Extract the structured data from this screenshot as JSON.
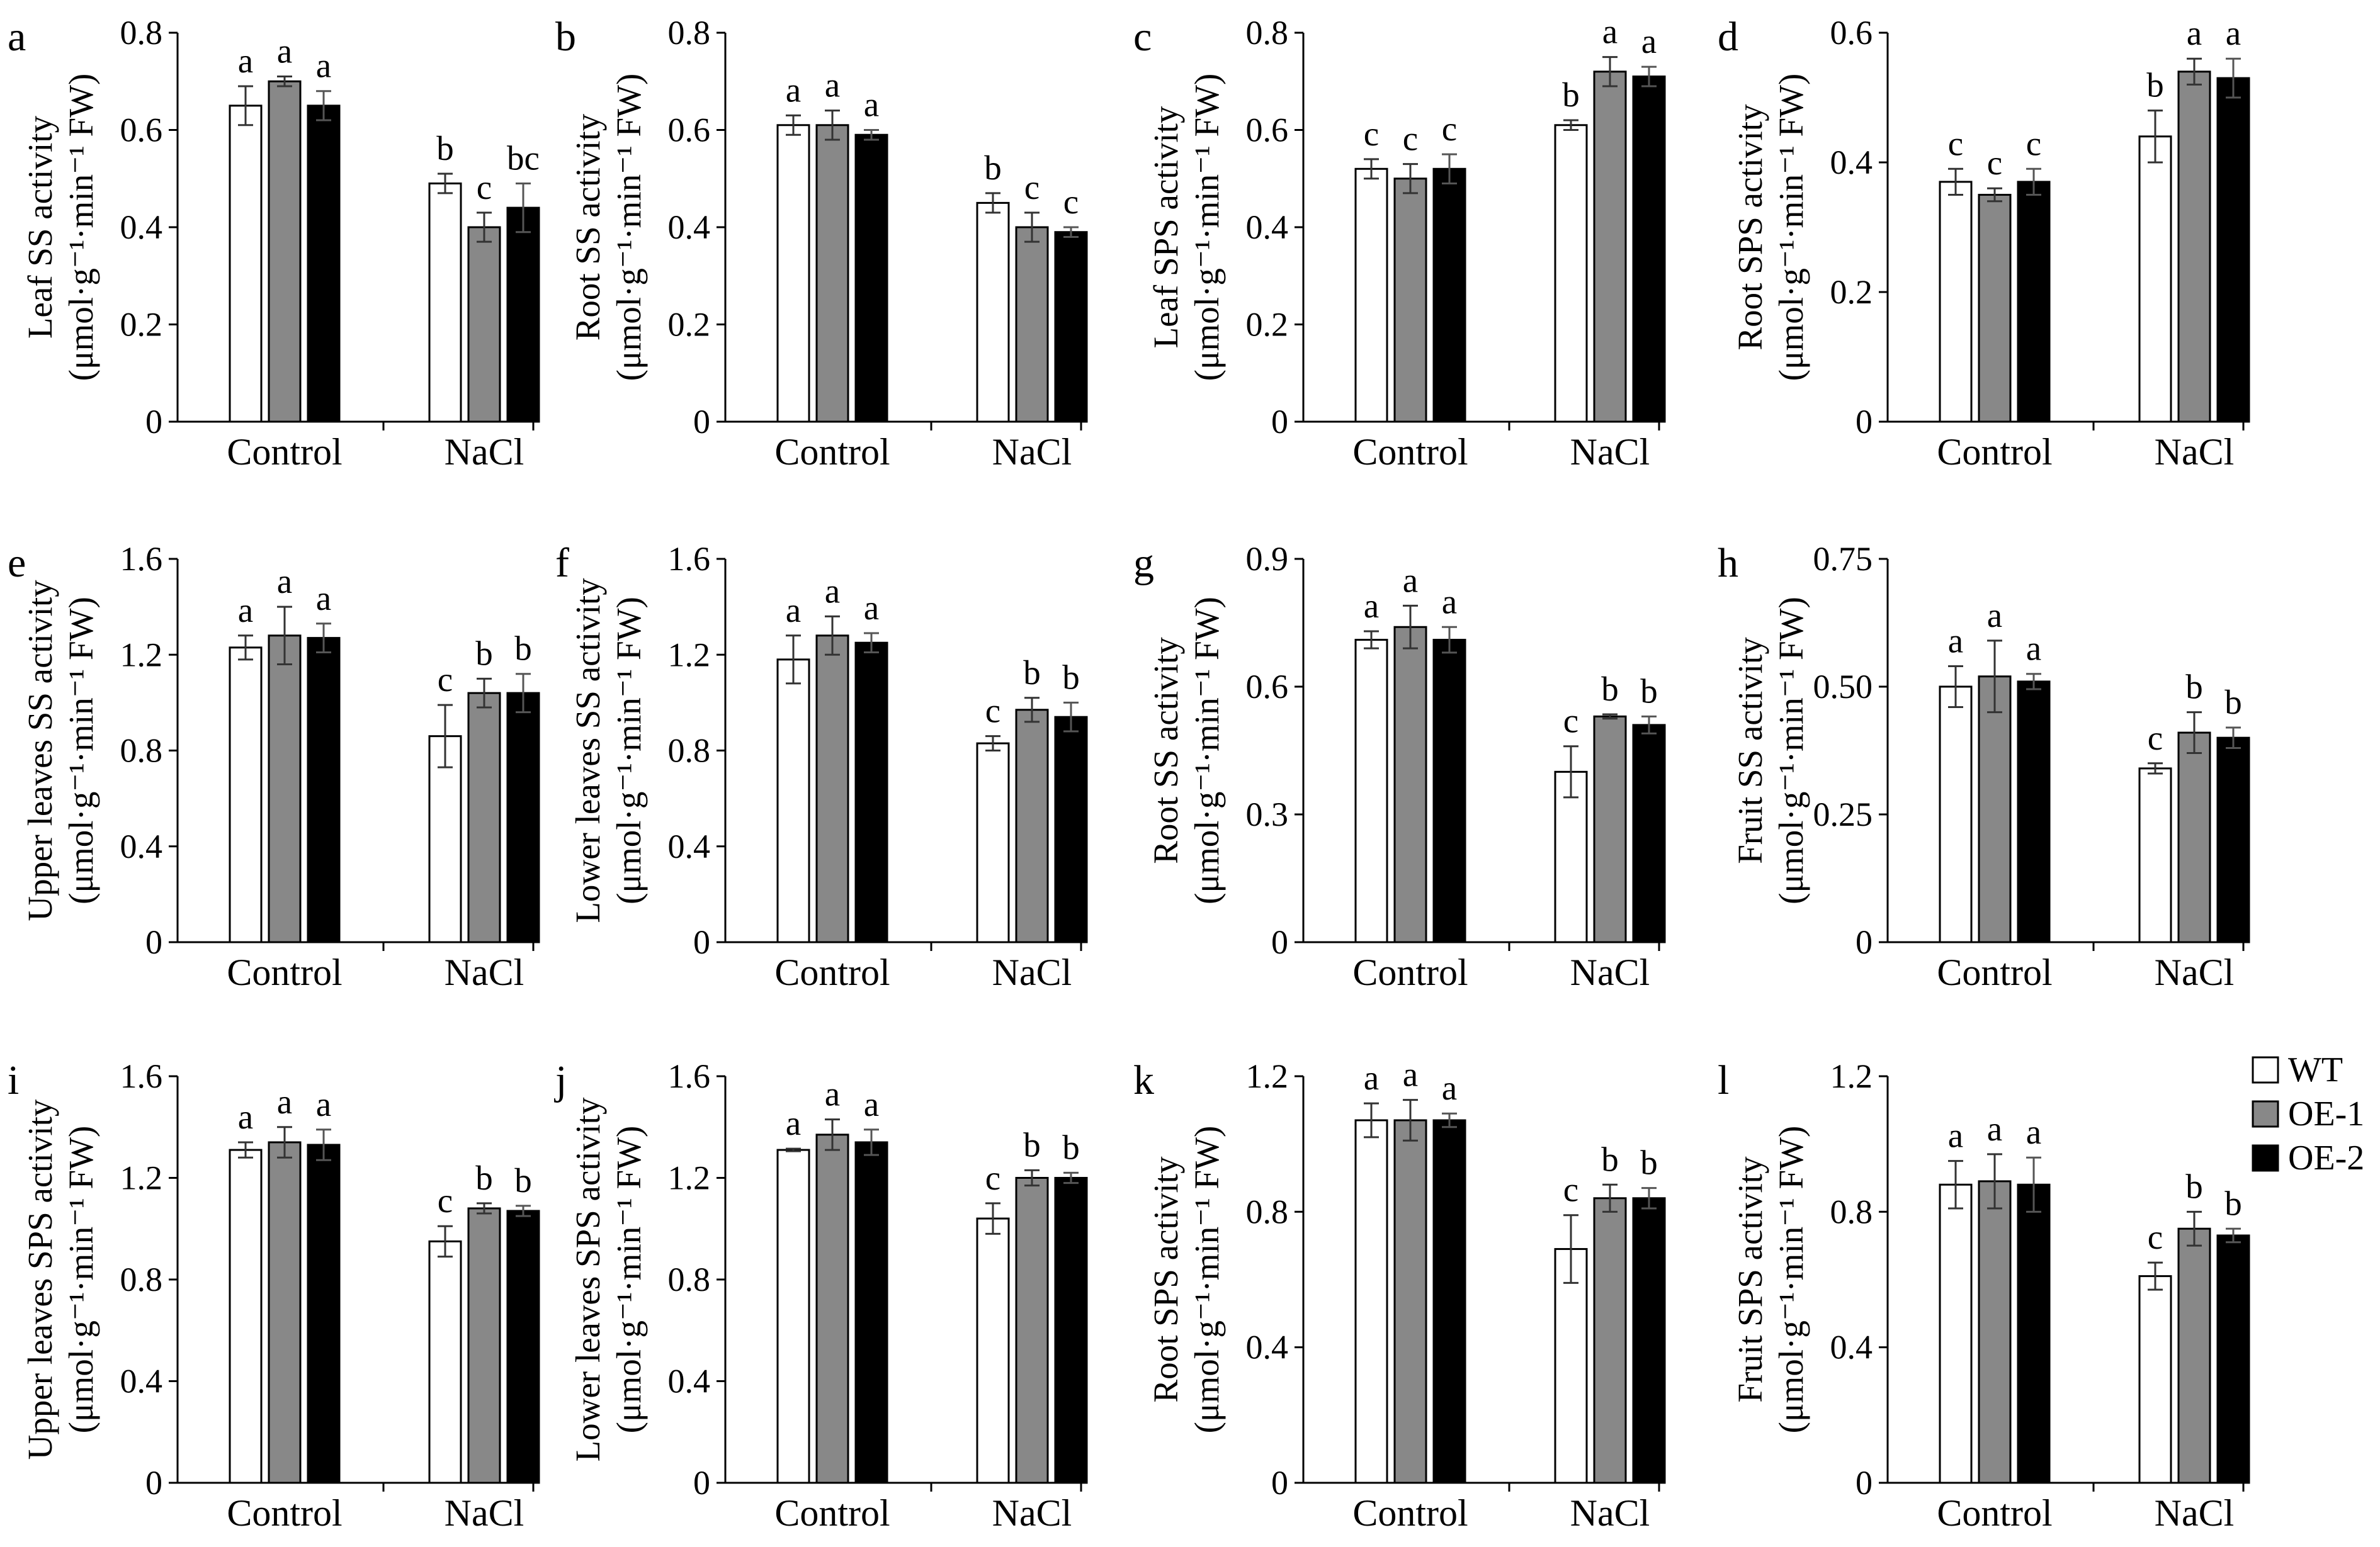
{
  "legend": {
    "items": [
      {
        "name": "WT",
        "color": "#ffffff"
      },
      {
        "name": "OE-1",
        "color": "#888888"
      },
      {
        "name": "OE-2",
        "color": "#000000"
      }
    ]
  },
  "chart_data": [
    {
      "type": "bar",
      "panel": "a",
      "ylabel_line1": "Leaf SS activity",
      "ylabel_line2": "(μmol·g⁻¹·min⁻¹ FW)",
      "categories": [
        "Control",
        "NaCl"
      ],
      "ylim": [
        0,
        0.8
      ],
      "yticks": [
        0,
        0.2,
        0.4,
        0.6,
        0.8
      ],
      "ytick_labels": [
        "0",
        "0.2",
        "0.4",
        "0.6",
        "0.8"
      ],
      "series": [
        {
          "name": "WT",
          "values": [
            0.65,
            0.49
          ],
          "errors": [
            0.04,
            0.02
          ],
          "letters": [
            "a",
            "b"
          ]
        },
        {
          "name": "OE-1",
          "values": [
            0.7,
            0.4
          ],
          "errors": [
            0.01,
            0.03
          ],
          "letters": [
            "a",
            "c"
          ]
        },
        {
          "name": "OE-2",
          "values": [
            0.65,
            0.44
          ],
          "errors": [
            0.03,
            0.05
          ],
          "letters": [
            "a",
            "bc"
          ]
        }
      ]
    },
    {
      "type": "bar",
      "panel": "b",
      "ylabel_line1": "Root SS activity",
      "ylabel_line2": "(μmol·g⁻¹·min⁻¹ FW)",
      "categories": [
        "Control",
        "NaCl"
      ],
      "ylim": [
        0,
        0.8
      ],
      "yticks": [
        0,
        0.2,
        0.4,
        0.6,
        0.8
      ],
      "ytick_labels": [
        "0",
        "0.2",
        "0.4",
        "0.6",
        "0.8"
      ],
      "series": [
        {
          "name": "WT",
          "values": [
            0.61,
            0.45
          ],
          "errors": [
            0.02,
            0.02
          ],
          "letters": [
            "a",
            "b"
          ]
        },
        {
          "name": "OE-1",
          "values": [
            0.61,
            0.4
          ],
          "errors": [
            0.03,
            0.03
          ],
          "letters": [
            "a",
            "c"
          ]
        },
        {
          "name": "OE-2",
          "values": [
            0.59,
            0.39
          ],
          "errors": [
            0.01,
            0.01
          ],
          "letters": [
            "a",
            "c"
          ]
        }
      ]
    },
    {
      "type": "bar",
      "panel": "c",
      "ylabel_line1": "Leaf SPS activity",
      "ylabel_line2": "(μmol·g⁻¹·min⁻¹ FW)",
      "categories": [
        "Control",
        "NaCl"
      ],
      "ylim": [
        0,
        0.8
      ],
      "yticks": [
        0,
        0.2,
        0.4,
        0.6,
        0.8
      ],
      "ytick_labels": [
        "0",
        "0.2",
        "0.4",
        "0.6",
        "0.8"
      ],
      "series": [
        {
          "name": "WT",
          "values": [
            0.52,
            0.61
          ],
          "errors": [
            0.02,
            0.01
          ],
          "letters": [
            "c",
            "b"
          ]
        },
        {
          "name": "OE-1",
          "values": [
            0.5,
            0.72
          ],
          "errors": [
            0.03,
            0.03
          ],
          "letters": [
            "c",
            "a"
          ]
        },
        {
          "name": "OE-2",
          "values": [
            0.52,
            0.71
          ],
          "errors": [
            0.03,
            0.02
          ],
          "letters": [
            "c",
            "a"
          ]
        }
      ]
    },
    {
      "type": "bar",
      "panel": "d",
      "ylabel_line1": "Root SPS activity",
      "ylabel_line2": "(μmol·g⁻¹·min⁻¹ FW)",
      "categories": [
        "Control",
        "NaCl"
      ],
      "ylim": [
        0,
        0.6
      ],
      "yticks": [
        0,
        0.2,
        0.4,
        0.6
      ],
      "ytick_labels": [
        "0",
        "0.2",
        "0.4",
        "0.6"
      ],
      "series": [
        {
          "name": "WT",
          "values": [
            0.37,
            0.44
          ],
          "errors": [
            0.02,
            0.04
          ],
          "letters": [
            "c",
            "b"
          ]
        },
        {
          "name": "OE-1",
          "values": [
            0.35,
            0.54
          ],
          "errors": [
            0.01,
            0.02
          ],
          "letters": [
            "c",
            "a"
          ]
        },
        {
          "name": "OE-2",
          "values": [
            0.37,
            0.53
          ],
          "errors": [
            0.02,
            0.03
          ],
          "letters": [
            "c",
            "a"
          ]
        }
      ]
    },
    {
      "type": "bar",
      "panel": "e",
      "ylabel_line1": "Upper leaves SS activity",
      "ylabel_line2": "(μmol·g⁻¹·min⁻¹ FW)",
      "categories": [
        "Control",
        "NaCl"
      ],
      "ylim": [
        0,
        1.6
      ],
      "yticks": [
        0,
        0.4,
        0.8,
        1.2,
        1.6
      ],
      "ytick_labels": [
        "0",
        "0.4",
        "0.8",
        "1.2",
        "1.6"
      ],
      "series": [
        {
          "name": "WT",
          "values": [
            1.23,
            0.86
          ],
          "errors": [
            0.05,
            0.13
          ],
          "letters": [
            "a",
            "c"
          ]
        },
        {
          "name": "OE-1",
          "values": [
            1.28,
            1.04
          ],
          "errors": [
            0.12,
            0.06
          ],
          "letters": [
            "a",
            "b"
          ]
        },
        {
          "name": "OE-2",
          "values": [
            1.27,
            1.04
          ],
          "errors": [
            0.06,
            0.08
          ],
          "letters": [
            "a",
            "b"
          ]
        }
      ]
    },
    {
      "type": "bar",
      "panel": "f",
      "ylabel_line1": "Lower leaves SS activity",
      "ylabel_line2": "(μmol·g⁻¹·min⁻¹ FW)",
      "categories": [
        "Control",
        "NaCl"
      ],
      "ylim": [
        0,
        1.6
      ],
      "yticks": [
        0,
        0.4,
        0.8,
        1.2,
        1.6
      ],
      "ytick_labels": [
        "0",
        "0.4",
        "0.8",
        "1.2",
        "1.6"
      ],
      "series": [
        {
          "name": "WT",
          "values": [
            1.18,
            0.83
          ],
          "errors": [
            0.1,
            0.03
          ],
          "letters": [
            "a",
            "c"
          ]
        },
        {
          "name": "OE-1",
          "values": [
            1.28,
            0.97
          ],
          "errors": [
            0.08,
            0.05
          ],
          "letters": [
            "a",
            "b"
          ]
        },
        {
          "name": "OE-2",
          "values": [
            1.25,
            0.94
          ],
          "errors": [
            0.04,
            0.06
          ],
          "letters": [
            "a",
            "b"
          ]
        }
      ]
    },
    {
      "type": "bar",
      "panel": "g",
      "ylabel_line1": "Root SS activity",
      "ylabel_line2": "(μmol·g⁻¹·min⁻¹ FW)",
      "categories": [
        "Control",
        "NaCl"
      ],
      "ylim": [
        0,
        0.9
      ],
      "yticks": [
        0,
        0.3,
        0.6,
        0.9
      ],
      "ytick_labels": [
        "0",
        "0.3",
        "0.6",
        "0.9"
      ],
      "series": [
        {
          "name": "WT",
          "values": [
            0.71,
            0.4
          ],
          "errors": [
            0.02,
            0.06
          ],
          "letters": [
            "a",
            "c"
          ]
        },
        {
          "name": "OE-1",
          "values": [
            0.74,
            0.53
          ],
          "errors": [
            0.05,
            0.005
          ],
          "letters": [
            "a",
            "b"
          ]
        },
        {
          "name": "OE-2",
          "values": [
            0.71,
            0.51
          ],
          "errors": [
            0.03,
            0.02
          ],
          "letters": [
            "a",
            "b"
          ]
        }
      ]
    },
    {
      "type": "bar",
      "panel": "h",
      "ylabel_line1": "Fruit SS activity",
      "ylabel_line2": "(μmol·g⁻¹·min⁻¹ FW)",
      "categories": [
        "Control",
        "NaCl"
      ],
      "ylim": [
        0,
        0.75
      ],
      "yticks": [
        0,
        0.25,
        0.5,
        0.75
      ],
      "ytick_labels": [
        "0",
        "0.25",
        "0.50",
        "0.75"
      ],
      "series": [
        {
          "name": "WT",
          "values": [
            0.5,
            0.34
          ],
          "errors": [
            0.04,
            0.01
          ],
          "letters": [
            "a",
            "c"
          ]
        },
        {
          "name": "OE-1",
          "values": [
            0.52,
            0.41
          ],
          "errors": [
            0.07,
            0.04
          ],
          "letters": [
            "a",
            "b"
          ]
        },
        {
          "name": "OE-2",
          "values": [
            0.51,
            0.4
          ],
          "errors": [
            0.015,
            0.02
          ],
          "letters": [
            "a",
            "b"
          ]
        }
      ]
    },
    {
      "type": "bar",
      "panel": "i",
      "ylabel_line1": "Upper leaves SPS activity",
      "ylabel_line2": "(μmol·g⁻¹·min⁻¹ FW)",
      "categories": [
        "Control",
        "NaCl"
      ],
      "ylim": [
        0,
        1.6
      ],
      "yticks": [
        0,
        0.4,
        0.8,
        1.2,
        1.6
      ],
      "ytick_labels": [
        "0",
        "0.4",
        "0.8",
        "1.2",
        "1.6"
      ],
      "series": [
        {
          "name": "WT",
          "values": [
            1.31,
            0.95
          ],
          "errors": [
            0.03,
            0.06
          ],
          "letters": [
            "a",
            "c"
          ]
        },
        {
          "name": "OE-1",
          "values": [
            1.34,
            1.08
          ],
          "errors": [
            0.06,
            0.02
          ],
          "letters": [
            "a",
            "b"
          ]
        },
        {
          "name": "OE-2",
          "values": [
            1.33,
            1.07
          ],
          "errors": [
            0.06,
            0.02
          ],
          "letters": [
            "a",
            "b"
          ]
        }
      ]
    },
    {
      "type": "bar",
      "panel": "j",
      "ylabel_line1": "Lower leaves SPS activity",
      "ylabel_line2": "(μmol·g⁻¹·min⁻¹ FW)",
      "categories": [
        "Control",
        "NaCl"
      ],
      "ylim": [
        0,
        1.6
      ],
      "yticks": [
        0,
        0.4,
        0.8,
        1.2,
        1.6
      ],
      "ytick_labels": [
        "0",
        "0.4",
        "0.8",
        "1.2",
        "1.6"
      ],
      "series": [
        {
          "name": "WT",
          "values": [
            1.31,
            1.04
          ],
          "errors": [
            0.005,
            0.06
          ],
          "letters": [
            "a",
            "c"
          ]
        },
        {
          "name": "OE-1",
          "values": [
            1.37,
            1.2
          ],
          "errors": [
            0.06,
            0.03
          ],
          "letters": [
            "a",
            "b"
          ]
        },
        {
          "name": "OE-2",
          "values": [
            1.34,
            1.2
          ],
          "errors": [
            0.05,
            0.02
          ],
          "letters": [
            "a",
            "b"
          ]
        }
      ]
    },
    {
      "type": "bar",
      "panel": "k",
      "ylabel_line1": "Root SPS activity",
      "ylabel_line2": "(μmol·g⁻¹·min⁻¹ FW)",
      "categories": [
        "Control",
        "NaCl"
      ],
      "ylim": [
        0,
        1.2
      ],
      "yticks": [
        0,
        0.4,
        0.8,
        1.2
      ],
      "ytick_labels": [
        "0",
        "0.4",
        "0.8",
        "1.2"
      ],
      "series": [
        {
          "name": "WT",
          "values": [
            1.07,
            0.69
          ],
          "errors": [
            0.05,
            0.1
          ],
          "letters": [
            "a",
            "c"
          ]
        },
        {
          "name": "OE-1",
          "values": [
            1.07,
            0.84
          ],
          "errors": [
            0.06,
            0.04
          ],
          "letters": [
            "a",
            "b"
          ]
        },
        {
          "name": "OE-2",
          "values": [
            1.07,
            0.84
          ],
          "errors": [
            0.02,
            0.03
          ],
          "letters": [
            "a",
            "b"
          ]
        }
      ]
    },
    {
      "type": "bar",
      "panel": "l",
      "ylabel_line1": "Fruit SPS activity",
      "ylabel_line2": "(μmol·g⁻¹·min⁻¹ FW)",
      "categories": [
        "Control",
        "NaCl"
      ],
      "ylim": [
        0,
        1.2
      ],
      "yticks": [
        0,
        0.4,
        0.8,
        1.2
      ],
      "ytick_labels": [
        "0",
        "0.4",
        "0.8",
        "1.2"
      ],
      "series": [
        {
          "name": "WT",
          "values": [
            0.88,
            0.61
          ],
          "errors": [
            0.07,
            0.04
          ],
          "letters": [
            "a",
            "c"
          ]
        },
        {
          "name": "OE-1",
          "values": [
            0.89,
            0.75
          ],
          "errors": [
            0.08,
            0.05
          ],
          "letters": [
            "a",
            "b"
          ]
        },
        {
          "name": "OE-2",
          "values": [
            0.88,
            0.73
          ],
          "errors": [
            0.08,
            0.02
          ],
          "letters": [
            "a",
            "b"
          ]
        }
      ]
    }
  ]
}
